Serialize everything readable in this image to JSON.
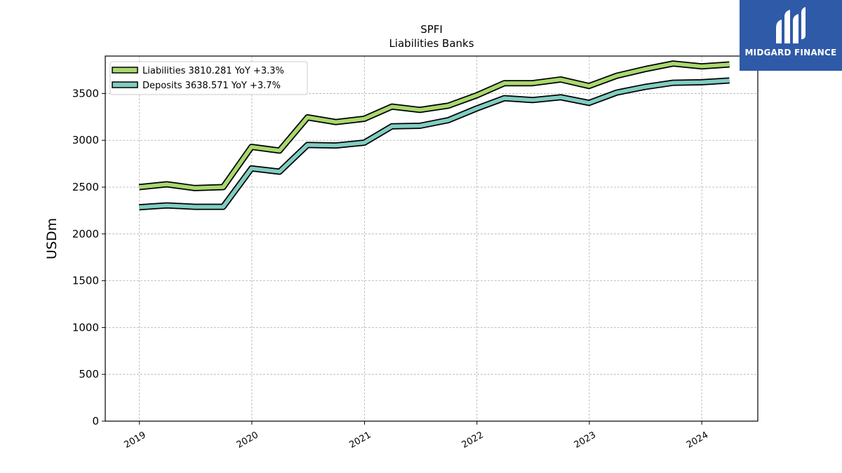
{
  "chart_data": {
    "type": "line",
    "title": "SPFI",
    "subtitle": "Liabilities Banks",
    "ylabel": "USDm",
    "xlabel": "",
    "xlim": [
      "2018-09-12",
      "2024-07-01"
    ],
    "ylim": [
      0,
      3900
    ],
    "yticks": [
      0,
      500,
      1000,
      1500,
      2000,
      2500,
      3000,
      3500
    ],
    "xticks": [
      {
        "label": "2019",
        "date": "2019-01-01"
      },
      {
        "label": "2020",
        "date": "2020-01-01"
      },
      {
        "label": "2021",
        "date": "2021-01-01"
      },
      {
        "label": "2022",
        "date": "2022-01-01"
      },
      {
        "label": "2023",
        "date": "2023-01-01"
      },
      {
        "label": "2024",
        "date": "2024-01-01"
      }
    ],
    "grid": true,
    "legend_position": "upper-left",
    "x": [
      "2018-12-31",
      "2019-03-31",
      "2019-06-30",
      "2019-09-30",
      "2019-12-31",
      "2020-03-31",
      "2020-06-30",
      "2020-09-30",
      "2020-12-31",
      "2021-03-31",
      "2021-06-30",
      "2021-09-30",
      "2021-12-31",
      "2022-03-31",
      "2022-06-30",
      "2022-09-30",
      "2022-12-31",
      "2023-03-31",
      "2023-06-30",
      "2023-09-30",
      "2023-12-31",
      "2024-03-31"
    ],
    "series": [
      {
        "name": "Liabilities",
        "legend": "Liabilities  3810.281 YoY +3.3%",
        "color": "#a8d86e",
        "values": [
          2500,
          2530,
          2490,
          2500,
          2930,
          2890,
          3245,
          3195,
          3230,
          3360,
          3325,
          3370,
          3480,
          3610,
          3610,
          3650,
          3580,
          3690,
          3760,
          3820,
          3790,
          3810
        ]
      },
      {
        "name": "Deposits",
        "legend": "Deposits  3638.571 YoY +3.7%",
        "color": "#80cdc1",
        "values": [
          2285,
          2305,
          2290,
          2290,
          2700,
          2665,
          2950,
          2945,
          2975,
          3150,
          3155,
          3215,
          3340,
          3450,
          3430,
          3460,
          3400,
          3510,
          3570,
          3615,
          3620,
          3639
        ]
      }
    ]
  },
  "logo": {
    "text": "MIDGARD FINANCE",
    "background": "#2f5aa8"
  }
}
